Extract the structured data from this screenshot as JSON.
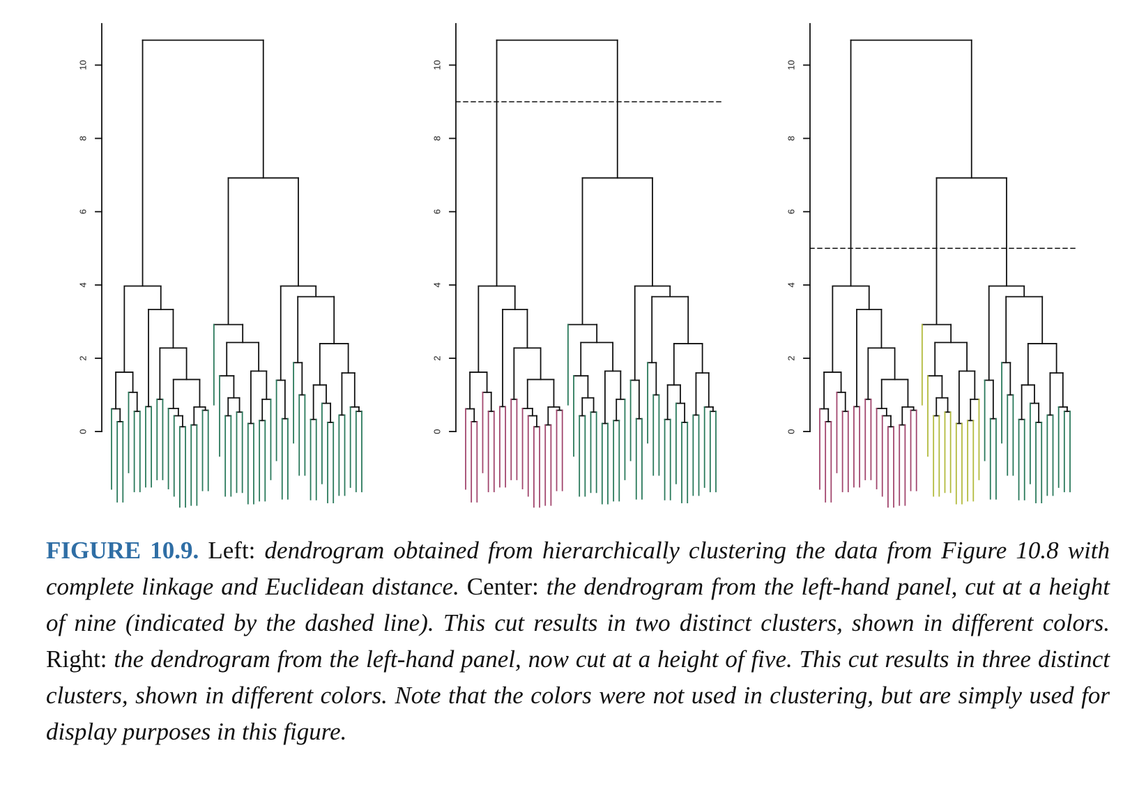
{
  "chart_data": [
    {
      "type": "dendrogram",
      "ylim": [
        -2.3,
        11.13
      ],
      "yticks": [
        0,
        2,
        4,
        6,
        8,
        10
      ],
      "cluster_colors": [
        "#2b7a5c"
      ],
      "tree": [
        10.68,
        [
          3.97,
          [
            1.62,
            [
              0.62,
              [],
              [
                0.27,
                [],
                []
              ]
            ],
            [
              1.07,
              [],
              [
                0.55,
                [],
                []
              ]
            ]
          ],
          [
            3.33,
            [
              0.68,
              [],
              []
            ],
            [
              2.28,
              [
                0.88,
                [],
                []
              ],
              [
                1.42,
                [
                  0.63,
                  [],
                  [
                    0.43,
                    [],
                    [
                      0.13,
                      [],
                      []
                    ]
                  ]
                ],
                [
                  0.67,
                  [
                    0.18,
                    [],
                    []
                  ],
                  [
                    0.58,
                    [],
                    []
                  ]
                ]
              ]
            ]
          ]
        ],
        [
          6.92,
          [
            2.92,
            [],
            [
              2.43,
              [
                1.52,
                [],
                [
                  0.92,
                  [
                    0.43,
                    [],
                    []
                  ],
                  [
                    0.53,
                    [],
                    []
                  ]
                ]
              ],
              [
                1.65,
                [
                  0.22,
                  [],
                  []
                ],
                [
                  0.88,
                  [
                    0.3,
                    [],
                    []
                  ],
                  []
                ]
              ]
            ]
          ],
          [
            3.97,
            [
              1.4,
              [],
              [
                0.35,
                [],
                []
              ]
            ],
            [
              3.68,
              [
                1.88,
                [],
                [
                  1.0,
                  [],
                  []
                ]
              ],
              [
                2.4,
                [
                  1.27,
                  [
                    0.33,
                    [],
                    []
                  ],
                  [
                    0.77,
                    [],
                    [
                      0.25,
                      [],
                      []
                    ]
                  ]
                ],
                [
                  1.6,
                  [
                    0.45,
                    [],
                    []
                  ],
                  [
                    0.67,
                    [],
                    [
                      0.55,
                      [],
                      []
                    ]
                  ]
                ]
              ]
            ]
          ]
        ]
      ]
    },
    {
      "type": "dendrogram",
      "ylim": [
        -2.3,
        11.13
      ],
      "yticks": [
        0,
        2,
        4,
        6,
        8,
        10
      ],
      "cut": 9,
      "cluster_colors": [
        "#a2476e",
        "#2b7a5c"
      ],
      "tree": [
        10.68,
        [
          3.97,
          [
            1.62,
            [
              0.62,
              [],
              [
                0.27,
                [],
                []
              ]
            ],
            [
              1.07,
              [],
              [
                0.55,
                [],
                []
              ]
            ]
          ],
          [
            3.33,
            [
              0.68,
              [],
              []
            ],
            [
              2.28,
              [
                0.88,
                [],
                []
              ],
              [
                1.42,
                [
                  0.63,
                  [],
                  [
                    0.43,
                    [],
                    [
                      0.13,
                      [],
                      []
                    ]
                  ]
                ],
                [
                  0.67,
                  [
                    0.18,
                    [],
                    []
                  ],
                  [
                    0.58,
                    [],
                    []
                  ]
                ]
              ]
            ]
          ]
        ],
        [
          6.92,
          [
            2.92,
            [],
            [
              2.43,
              [
                1.52,
                [],
                [
                  0.92,
                  [
                    0.43,
                    [],
                    []
                  ],
                  [
                    0.53,
                    [],
                    []
                  ]
                ]
              ],
              [
                1.65,
                [
                  0.22,
                  [],
                  []
                ],
                [
                  0.88,
                  [
                    0.3,
                    [],
                    []
                  ],
                  []
                ]
              ]
            ]
          ],
          [
            3.97,
            [
              1.4,
              [],
              [
                0.35,
                [],
                []
              ]
            ],
            [
              3.68,
              [
                1.88,
                [],
                [
                  1.0,
                  [],
                  []
                ]
              ],
              [
                2.4,
                [
                  1.27,
                  [
                    0.33,
                    [],
                    []
                  ],
                  [
                    0.77,
                    [],
                    [
                      0.25,
                      [],
                      []
                    ]
                  ]
                ],
                [
                  1.6,
                  [
                    0.45,
                    [],
                    []
                  ],
                  [
                    0.67,
                    [],
                    [
                      0.55,
                      [],
                      []
                    ]
                  ]
                ]
              ]
            ]
          ]
        ]
      ]
    },
    {
      "type": "dendrogram",
      "ylim": [
        -2.3,
        11.13
      ],
      "yticks": [
        0,
        2,
        4,
        6,
        8,
        10
      ],
      "cut": 5,
      "cluster_colors": [
        "#a2476e",
        "#b3bb3e",
        "#2b7a5c"
      ],
      "tree": [
        10.68,
        [
          3.97,
          [
            1.62,
            [
              0.62,
              [],
              [
                0.27,
                [],
                []
              ]
            ],
            [
              1.07,
              [],
              [
                0.55,
                [],
                []
              ]
            ]
          ],
          [
            3.33,
            [
              0.68,
              [],
              []
            ],
            [
              2.28,
              [
                0.88,
                [],
                []
              ],
              [
                1.42,
                [
                  0.63,
                  [],
                  [
                    0.43,
                    [],
                    [
                      0.13,
                      [],
                      []
                    ]
                  ]
                ],
                [
                  0.67,
                  [
                    0.18,
                    [],
                    []
                  ],
                  [
                    0.58,
                    [],
                    []
                  ]
                ]
              ]
            ]
          ]
        ],
        [
          6.92,
          [
            2.92,
            [],
            [
              2.43,
              [
                1.52,
                [],
                [
                  0.92,
                  [
                    0.43,
                    [],
                    []
                  ],
                  [
                    0.53,
                    [],
                    []
                  ]
                ]
              ],
              [
                1.65,
                [
                  0.22,
                  [],
                  []
                ],
                [
                  0.88,
                  [
                    0.3,
                    [],
                    []
                  ],
                  []
                ]
              ]
            ]
          ],
          [
            3.97,
            [
              1.4,
              [],
              [
                0.35,
                [],
                []
              ]
            ],
            [
              3.68,
              [
                1.88,
                [],
                [
                  1.0,
                  [],
                  []
                ]
              ],
              [
                2.4,
                [
                  1.27,
                  [
                    0.33,
                    [],
                    []
                  ],
                  [
                    0.77,
                    [],
                    [
                      0.25,
                      [],
                      []
                    ]
                  ]
                ],
                [
                  1.6,
                  [
                    0.45,
                    [],
                    []
                  ],
                  [
                    0.67,
                    [],
                    [
                      0.55,
                      [],
                      []
                    ]
                  ]
                ]
              ]
            ]
          ]
        ]
      ]
    }
  ],
  "caption": {
    "label": "FIGURE 10.9.",
    "parts": [
      {
        "text": "Left:",
        "style": "roman"
      },
      {
        "text": "dendrogram obtained from hierarchically clustering the data from Figure 10.8 with complete linkage and Euclidean distance.",
        "style": "italic"
      },
      {
        "text": "Center:",
        "style": "roman"
      },
      {
        "text": "the dendrogram from the left-hand panel, cut at a height of nine (indicated by the dashed line). This cut results in two distinct clusters, shown in different colors.",
        "style": "italic"
      },
      {
        "text": "Right:",
        "style": "roman"
      },
      {
        "text": "the dendrogram from the left-hand panel, now cut at a height of five. This cut results in three distinct clusters, shown in different colors. Note that the colors were not used in clustering, but are simply used for display purposes in this figure.",
        "style": "italic"
      }
    ]
  }
}
